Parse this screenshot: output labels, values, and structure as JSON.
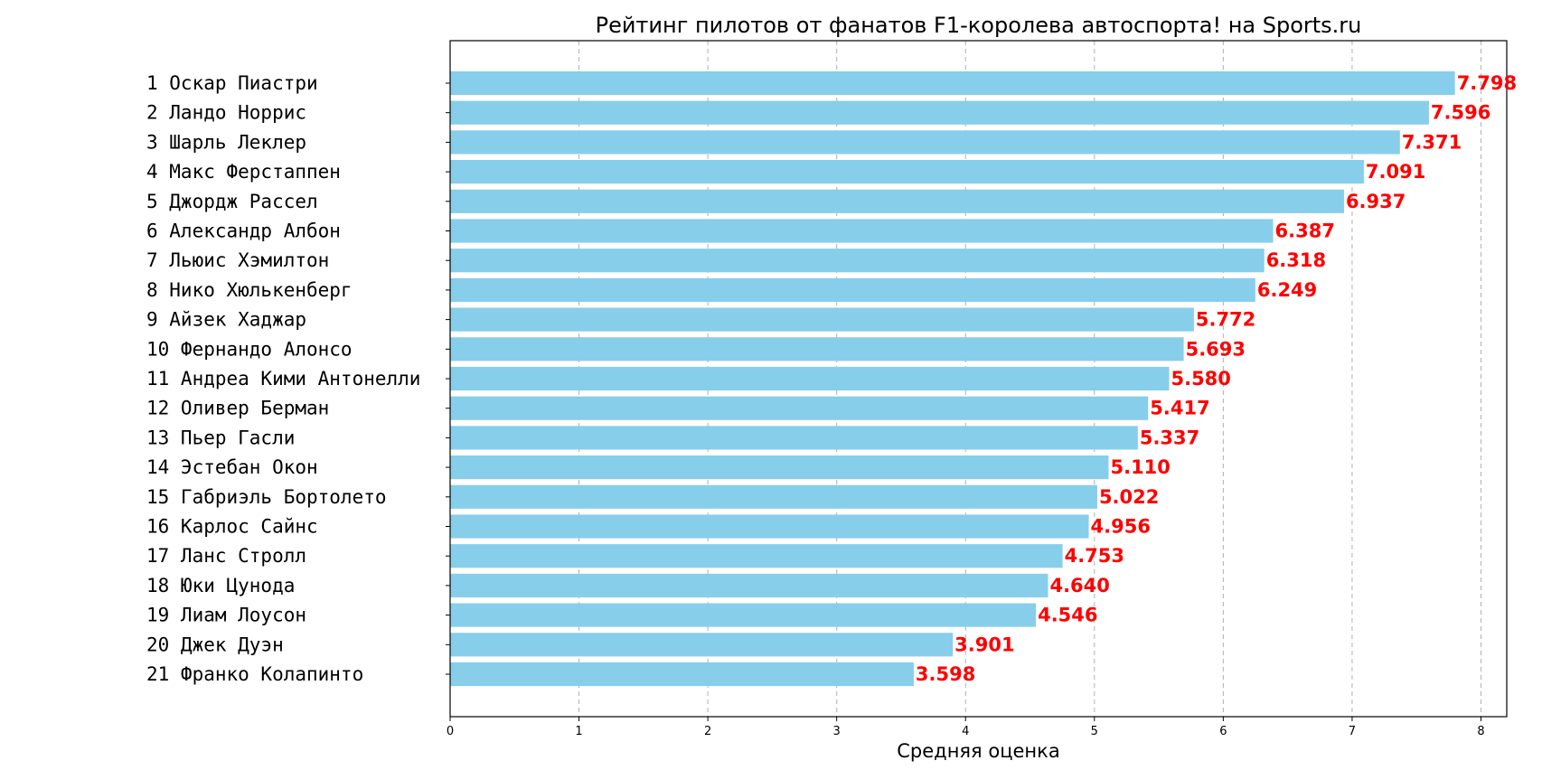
{
  "chart_data": {
    "type": "bar",
    "orientation": "horizontal",
    "title": "Рейтинг пилотов от фанатов F1-королева автоспорта! на Sports.ru",
    "xlabel": "Средняя оценка",
    "ylabel": "",
    "xlim": [
      0,
      8.2
    ],
    "xticks": [
      0,
      1,
      2,
      3,
      4,
      5,
      6,
      7,
      8
    ],
    "grid": "vertical dashed",
    "bar_color": "#87CEEB",
    "label_color": "#FF0000",
    "categories": [
      "1 Оскар Пиастри",
      "2 Ландо Норрис",
      "3 Шарль Леклер",
      "4 Макс Ферстаппен",
      "5 Джордж Рассел",
      "6 Александр Албон",
      "7 Льюис Хэмилтон",
      "8 Нико Хюлькенберг",
      "9 Айзек Хаджар",
      "10 Фернандо Алонсо",
      "11 Андреа Кими Антонелли",
      "12 Оливер Берман",
      "13 Пьер Гасли",
      "14 Эстебан Окон",
      "15 Габриэль Бортолето",
      "16 Карлос Сайнс",
      "17 Ланс Стролл",
      "18 Юки Цунода",
      "19 Лиам Лоусон",
      "20 Джек Дуэн",
      "21 Франко Колапинто"
    ],
    "values": [
      7.798,
      7.596,
      7.371,
      7.091,
      6.937,
      6.387,
      6.318,
      6.249,
      5.772,
      5.693,
      5.58,
      5.417,
      5.337,
      5.11,
      5.022,
      4.956,
      4.753,
      4.64,
      4.546,
      3.901,
      3.598
    ],
    "value_labels": [
      "7.798",
      "7.596",
      "7.371",
      "7.091",
      "6.937",
      "6.387",
      "6.318",
      "6.249",
      "5.772",
      "5.693",
      "5.580",
      "5.417",
      "5.337",
      "5.110",
      "5.022",
      "4.956",
      "4.753",
      "4.640",
      "4.546",
      "3.901",
      "3.598"
    ]
  }
}
